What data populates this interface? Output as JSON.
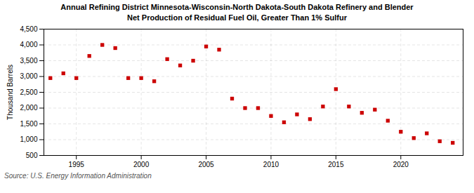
{
  "chart_data": {
    "type": "scatter",
    "title": "Annual Refining District Minnesota-Wisconsin-North Dakota-South Dakota Refinery and Blender\nNet Production of Residual Fuel Oil, Greater Than 1% Sulfur",
    "ylabel": "Thousand Barrels",
    "source": "Source: U.S. Energy Information Administration",
    "x": [
      1993,
      1994,
      1995,
      1996,
      1997,
      1998,
      1999,
      2000,
      2001,
      2002,
      2003,
      2004,
      2005,
      2006,
      2007,
      2008,
      2009,
      2010,
      2011,
      2012,
      2013,
      2014,
      2015,
      2016,
      2017,
      2018,
      2019,
      2020,
      2021,
      2022,
      2023,
      2024
    ],
    "values": [
      2950,
      3100,
      2950,
      3650,
      4000,
      3900,
      2950,
      2950,
      2850,
      3550,
      3350,
      3500,
      3950,
      3850,
      2300,
      2000,
      2000,
      1750,
      1550,
      1800,
      1650,
      2050,
      2600,
      2050,
      1850,
      1950,
      1600,
      1250,
      1050,
      1200,
      950,
      900
    ],
    "color": "#cc0000",
    "marker": "square",
    "xlim": [
      1992.5,
      2024.8
    ],
    "xticks": [
      1995,
      2000,
      2005,
      2010,
      2015,
      2020
    ],
    "ylim": [
      500,
      4500
    ],
    "yticks": [
      500,
      {
        "value": 1000,
        "label": "1,000"
      },
      {
        "value": 1500,
        "label": "1,500"
      },
      {
        "value": 2000,
        "label": "2,000"
      },
      {
        "value": 2500,
        "label": "2,500"
      },
      {
        "value": 3000,
        "label": "3,000"
      },
      {
        "value": 3500,
        "label": "3,500"
      },
      {
        "value": 4000,
        "label": "4,000"
      },
      {
        "value": 4500,
        "label": "4,500"
      }
    ],
    "grid": true
  }
}
